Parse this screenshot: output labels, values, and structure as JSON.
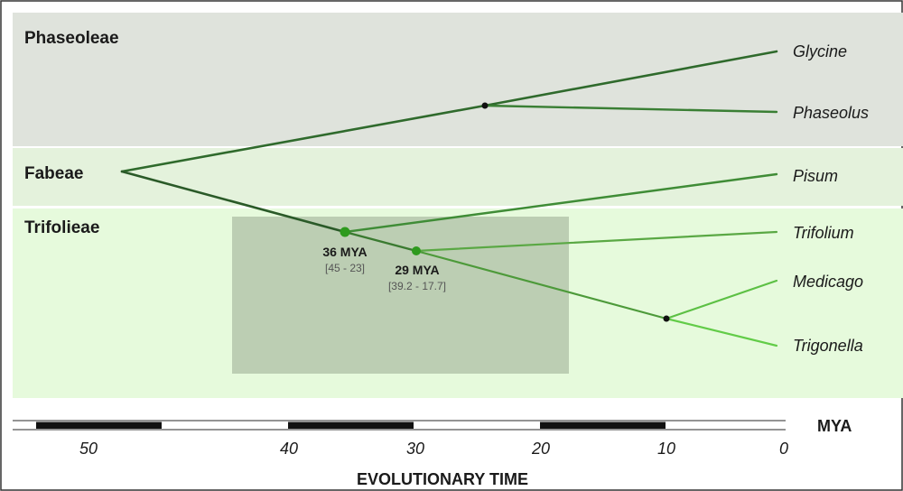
{
  "bands": [
    {
      "label": "Phaseoleae",
      "color": "#dfe3dc"
    },
    {
      "label": "Fabeae",
      "color": "#e4f2dc"
    },
    {
      "label": "Trifolieae",
      "color": "#e6fadc"
    }
  ],
  "taxa": [
    "Glycine",
    "Phaseolus",
    "Pisum",
    "Trifolium",
    "Medicago",
    "Trigonella"
  ],
  "nodes": [
    {
      "label": "36 MYA",
      "range": "[45 - 23]"
    },
    {
      "label": "29 MYA",
      "range": "[39.2 - 17.7]"
    }
  ],
  "axis": {
    "title": "EVOLUTIONARY TIME",
    "unit": "MYA",
    "ticks": [
      "50",
      "40",
      "30",
      "20",
      "10",
      "0"
    ]
  },
  "colors": {
    "branch_dark": "#2f6a2c",
    "branch_mid": "#4a9a3a",
    "branch_light": "#62cc48",
    "node_marker": "#2e9a1e",
    "confidence_box": "#8a9a80"
  }
}
